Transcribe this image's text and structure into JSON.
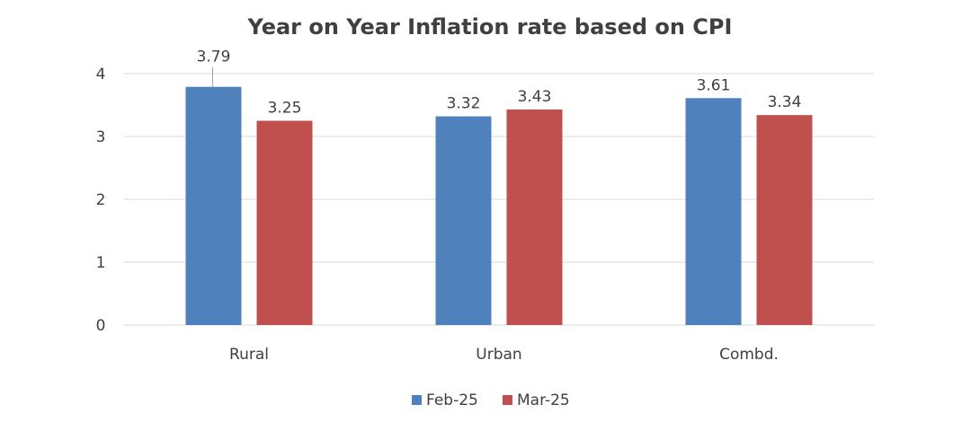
{
  "chart_data": {
    "type": "bar",
    "title": "Year on Year Inflation rate based on CPI",
    "categories": [
      "Rural",
      "Urban",
      "Combd."
    ],
    "series": [
      {
        "name": "Feb-25",
        "values": [
          3.79,
          3.32,
          3.61
        ],
        "color": "#4F81BD"
      },
      {
        "name": "Mar-25",
        "values": [
          3.25,
          3.43,
          3.34
        ],
        "color": "#C0504D"
      }
    ],
    "data_labels": [
      [
        "3.79",
        "3.32",
        "3.61"
      ],
      [
        "3.25",
        "3.43",
        "3.34"
      ]
    ],
    "yticks": [
      "0",
      "1",
      "2",
      "3",
      "4"
    ],
    "ylim": [
      0,
      4
    ],
    "grid": true,
    "legend_position": "bottom"
  }
}
